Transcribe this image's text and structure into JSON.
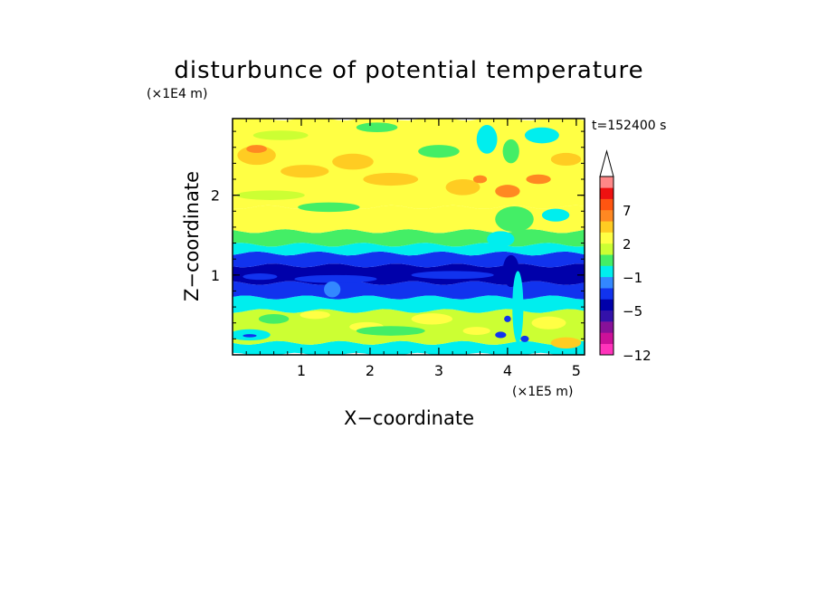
{
  "chart_data": {
    "type": "heatmap",
    "title": "disturbunce of potential temperature",
    "xlabel": "X−coordinate",
    "ylabel": "Z−coordinate",
    "x_scale_note": "(×1E5 m)",
    "y_scale_note": "(×1E4 m)",
    "time_label": "t=152400 s",
    "xlim": [
      0,
      5.12
    ],
    "ylim": [
      0,
      2.96
    ],
    "x_ticks": [
      1,
      2,
      3,
      4,
      5
    ],
    "x_tick_labels": [
      "1",
      "2",
      "3",
      "4",
      "5"
    ],
    "y_ticks": [
      1,
      2
    ],
    "y_tick_labels": [
      "1",
      "2"
    ],
    "grid": false,
    "colorbar": {
      "levels": [
        -12,
        -10,
        -8,
        -7,
        -5,
        -4,
        -2,
        -1,
        0,
        1,
        2,
        3,
        5,
        7,
        8,
        10,
        12
      ],
      "colors": [
        "#ff33bb",
        "#cc1199",
        "#881199",
        "#3311aa",
        "#0000aa",
        "#1133ee",
        "#3388ff",
        "#00eeee",
        "#44ee66",
        "#ccff33",
        "#ffff44",
        "#ffcc22",
        "#ff8822",
        "#ff5511",
        "#ee1111",
        "#ff8888",
        "#ffbbbb"
      ],
      "tick_values": [
        -12,
        -5,
        -1,
        2,
        7
      ],
      "tick_labels": [
        "−12",
        "−5",
        "−1",
        "2",
        "7"
      ],
      "extend": "max"
    },
    "bands": [
      {
        "z": [
          0.0,
          0.15
        ],
        "color": "#00eeee"
      },
      {
        "z": [
          0.15,
          0.55
        ],
        "color": "#ccff33"
      },
      {
        "z": [
          0.55,
          0.72
        ],
        "color": "#00eeee"
      },
      {
        "z": [
          0.72,
          0.9
        ],
        "color": "#1133ee"
      },
      {
        "z": [
          0.9,
          1.12
        ],
        "color": "#0000aa"
      },
      {
        "z": [
          1.12,
          1.27
        ],
        "color": "#1133ee"
      },
      {
        "z": [
          1.27,
          1.38
        ],
        "color": "#00eeee"
      },
      {
        "z": [
          1.38,
          1.55
        ],
        "color": "#44ee66"
      },
      {
        "z": [
          1.55,
          1.85
        ],
        "color": "#ffff44"
      },
      {
        "z": [
          1.85,
          2.96
        ],
        "color": "#ffff44"
      }
    ],
    "patches": [
      {
        "x": 0.35,
        "z": 2.5,
        "rx": 0.28,
        "rz": 0.12,
        "color": "#ffcc22"
      },
      {
        "x": 0.35,
        "z": 2.58,
        "rx": 0.15,
        "rz": 0.05,
        "color": "#ff8822"
      },
      {
        "x": 1.05,
        "z": 2.3,
        "rx": 0.35,
        "rz": 0.08,
        "color": "#ffcc22"
      },
      {
        "x": 1.75,
        "z": 2.42,
        "rx": 0.3,
        "rz": 0.1,
        "color": "#ffcc22"
      },
      {
        "x": 2.3,
        "z": 2.2,
        "rx": 0.4,
        "rz": 0.08,
        "color": "#ffcc22"
      },
      {
        "x": 0.55,
        "z": 2.0,
        "rx": 0.5,
        "rz": 0.06,
        "color": "#ccff33"
      },
      {
        "x": 1.4,
        "z": 1.85,
        "rx": 0.45,
        "rz": 0.06,
        "color": "#44ee66"
      },
      {
        "x": 0.7,
        "z": 2.75,
        "rx": 0.4,
        "rz": 0.06,
        "color": "#ccff33"
      },
      {
        "x": 2.1,
        "z": 2.85,
        "rx": 0.3,
        "rz": 0.06,
        "color": "#44ee66"
      },
      {
        "x": 3.0,
        "z": 2.55,
        "rx": 0.3,
        "rz": 0.08,
        "color": "#44ee66"
      },
      {
        "x": 3.35,
        "z": 2.1,
        "rx": 0.25,
        "rz": 0.1,
        "color": "#ffcc22"
      },
      {
        "x": 3.6,
        "z": 2.2,
        "rx": 0.1,
        "rz": 0.05,
        "color": "#ff8822"
      },
      {
        "x": 3.7,
        "z": 2.7,
        "rx": 0.15,
        "rz": 0.18,
        "color": "#00eeee"
      },
      {
        "x": 4.0,
        "z": 2.05,
        "rx": 0.18,
        "rz": 0.08,
        "color": "#ff8822"
      },
      {
        "x": 4.05,
        "z": 2.55,
        "rx": 0.12,
        "rz": 0.15,
        "color": "#44ee66"
      },
      {
        "x": 4.5,
        "z": 2.75,
        "rx": 0.25,
        "rz": 0.1,
        "color": "#00eeee"
      },
      {
        "x": 4.45,
        "z": 2.2,
        "rx": 0.18,
        "rz": 0.06,
        "color": "#ff8822"
      },
      {
        "x": 4.85,
        "z": 2.45,
        "rx": 0.22,
        "rz": 0.08,
        "color": "#ffcc22"
      },
      {
        "x": 4.1,
        "z": 1.7,
        "rx": 0.28,
        "rz": 0.16,
        "color": "#44ee66"
      },
      {
        "x": 4.7,
        "z": 1.75,
        "rx": 0.2,
        "rz": 0.08,
        "color": "#00eeee"
      },
      {
        "x": 3.9,
        "z": 1.45,
        "rx": 0.2,
        "rz": 0.1,
        "color": "#00eeee"
      },
      {
        "x": 1.5,
        "z": 0.95,
        "rx": 0.6,
        "rz": 0.05,
        "color": "#1133ee"
      },
      {
        "x": 3.2,
        "z": 1.0,
        "rx": 0.6,
        "rz": 0.05,
        "color": "#1133ee"
      },
      {
        "x": 0.4,
        "z": 0.98,
        "rx": 0.25,
        "rz": 0.04,
        "color": "#1133ee"
      },
      {
        "x": 4.05,
        "z": 1.05,
        "rx": 0.12,
        "rz": 0.2,
        "color": "#0000aa"
      },
      {
        "x": 4.15,
        "z": 0.6,
        "rx": 0.08,
        "rz": 0.45,
        "color": "#00eeee"
      },
      {
        "x": 1.45,
        "z": 0.82,
        "rx": 0.12,
        "rz": 0.1,
        "color": "#3388ff"
      },
      {
        "x": 0.6,
        "z": 0.45,
        "rx": 0.22,
        "rz": 0.06,
        "color": "#44ee66"
      },
      {
        "x": 1.2,
        "z": 0.5,
        "rx": 0.22,
        "rz": 0.05,
        "color": "#ffff44"
      },
      {
        "x": 1.95,
        "z": 0.35,
        "rx": 0.25,
        "rz": 0.06,
        "color": "#ffff44"
      },
      {
        "x": 2.9,
        "z": 0.45,
        "rx": 0.3,
        "rz": 0.07,
        "color": "#ffff44"
      },
      {
        "x": 3.55,
        "z": 0.3,
        "rx": 0.2,
        "rz": 0.05,
        "color": "#ffff44"
      },
      {
        "x": 4.6,
        "z": 0.4,
        "rx": 0.25,
        "rz": 0.08,
        "color": "#ffff44"
      },
      {
        "x": 4.85,
        "z": 0.15,
        "rx": 0.22,
        "rz": 0.07,
        "color": "#ffcc22"
      },
      {
        "x": 2.3,
        "z": 0.3,
        "rx": 0.5,
        "rz": 0.06,
        "color": "#44ee66"
      },
      {
        "x": 0.25,
        "z": 0.25,
        "rx": 0.3,
        "rz": 0.07,
        "color": "#00eeee"
      },
      {
        "x": 0.25,
        "z": 0.24,
        "rx": 0.1,
        "rz": 0.02,
        "color": "#1133ee"
      },
      {
        "x": 3.9,
        "z": 0.25,
        "rx": 0.08,
        "rz": 0.04,
        "color": "#1133ee"
      },
      {
        "x": 4.25,
        "z": 0.2,
        "rx": 0.06,
        "rz": 0.04,
        "color": "#1133ee"
      },
      {
        "x": 4.0,
        "z": 0.45,
        "rx": 0.05,
        "rz": 0.04,
        "color": "#1133ee"
      }
    ]
  }
}
